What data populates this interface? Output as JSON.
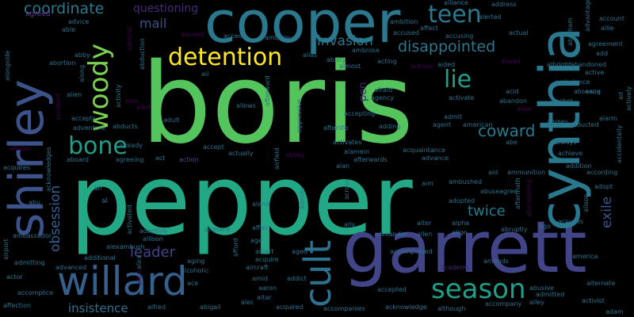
{
  "cloud": {
    "background": "#000000",
    "words": {
      "boris": "boris",
      "pepper": "pepper",
      "cooper": "cooper",
      "garrett": "garrett",
      "cynthia": "cynthia",
      "shirley": "shirley",
      "willard": "willard",
      "woody": "woody",
      "detention": "detention",
      "teen": "teen",
      "cult": "cult",
      "season": "season",
      "bone": "bone",
      "lie": "lie",
      "coordinate": "coordinate",
      "disappointed": "disappointed",
      "invasion": "invasion",
      "coward": "coward",
      "twice": "twice",
      "obsession": "obsession",
      "leader": "leader",
      "insistence": "insistence",
      "mail": "mail",
      "exile": "exile",
      "questioning": "questioning",
      "pen": "pen",
      "agreed": "agreed",
      "advice": "advice",
      "able": "able",
      "abby": "abby",
      "abortion": "abortion",
      "alongside": "alongside",
      "alien": "alien",
      "accident": "accident",
      "accepts": "accepts",
      "adventure": "adventure",
      "african": "african",
      "aboard": "aboard",
      "acquires": "acquires",
      "acknowledges": "acknowledges",
      "abu": "abu",
      "air": "air",
      "al": "al",
      "airport": "airport",
      "ambassador": "ambassador",
      "admitting": "admitting",
      "actor": "actor",
      "affection": "affection",
      "accomplice": "accomplice",
      "advanced": "advanced",
      "alice": "alice",
      "alfred": "alfred",
      "abigail": "abigail",
      "alec": "alec",
      "acquired": "acquired",
      "accompanies": "accompanies",
      "acknowledge": "acknowledge",
      "although": "although",
      "accompany": "accompany",
      "alley": "alley",
      "activist": "activist",
      "adam": "adam",
      "alternate": "alternate",
      "america": "america",
      "amends": "amends",
      "academy": "academy",
      "accepted": "accepted",
      "abusive": "abusive",
      "admitted": "admitted",
      "alarm": "alarm",
      "abducted": "abducted",
      "agrees": "agrees",
      "always": "always",
      "achieve": "achieve",
      "accidentally": "accidentally",
      "according": "according",
      "addition": "addition",
      "adopt": "adopt",
      "alison": "alison",
      "accuses": "accuses",
      "ago": "ago",
      "abruptly": "abruptly",
      "alpha": "alpha",
      "align": "align",
      "allen": "allen",
      "alter": "alter",
      "alexander": "alexander",
      "ally": "ally",
      "accompanied": "accompanied",
      "ambushed": "ambushed",
      "aim": "aim",
      "adopted": "adopted",
      "abuse": "abuse",
      "agree": "agree",
      "aid": "aid",
      "ammunition": "ammunition",
      "abandoning": "abandoning",
      "aftermath": "aftermath",
      "abe": "abe",
      "advance": "advance",
      "acquaintance": "acquaintance",
      "afterwards": "afterwards",
      "alan": "alan",
      "alamein": "alamein",
      "activates": "activates",
      "afterlife": "afterlife",
      "accepting": "accepting",
      "adding": "adding",
      "agent": "agent",
      "admit": "admit",
      "american": "american",
      "activate": "activate",
      "agency": "agency",
      "afraid": "afraid",
      "actress": "actress",
      "acting": "acting",
      "almost": "almost",
      "ability": "ability",
      "alias": "alias",
      "ambrose": "ambrose",
      "ambitious": "ambitious",
      "access": "access",
      "abused": "abused",
      "admiral": "admiral",
      "abduction": "abduction",
      "ali": "ali",
      "activity": "activity",
      "along": "along",
      "alert": "alert",
      "also": "also",
      "adult": "adult",
      "allows": "allows",
      "afterward": "afterward",
      "aggressive": "aggressive",
      "airfield": "airfield",
      "abbey": "abbey",
      "actually": "actually",
      "accept": "accept",
      "action": "action",
      "act": "act",
      "agreeing": "agreeing",
      "already": "already",
      "abducts": "abducts",
      "alexambush": "alexambush",
      "allison": "allison",
      "adoptive": "adoptive",
      "activated": "activated",
      "airplane": "airplane",
      "alone": "alone",
      "affair": "affair",
      "across": "across",
      "admits": "admits",
      "afford": "afford",
      "age": "age",
      "aging": "aging",
      "additional": "additional",
      "albert": "albert",
      "acquire": "acquire",
      "aircraft": "aircraft",
      "alcoholic": "alcoholic",
      "ace": "ace",
      "amid": "amid",
      "aaron": "aaron",
      "altar": "altar",
      "addict": "addict",
      "aged": "aged",
      "alliance": "alliance",
      "address": "address",
      "ambition": "ambition",
      "affect": "affect",
      "alerted": "alerted",
      "abraham": "abraham",
      "advantage": "advantage",
      "account": "account",
      "allie": "allie",
      "accused": "accused",
      "accusing": "accusing",
      "actual": "actual",
      "ahead": "ahead",
      "aided": "aided",
      "agreement": "agreement",
      "add": "add",
      "albright": "albright",
      "abandoned": "abandoned",
      "active": "active",
      "acid": "acid",
      "ambulance": "ambulance",
      "aang": "aang",
      "abandon": "abandon",
      "absence": "absence",
      "alcohol": "alcohol",
      "alive": "alive",
      "ad": "ad",
      "actively": "actively"
    }
  }
}
